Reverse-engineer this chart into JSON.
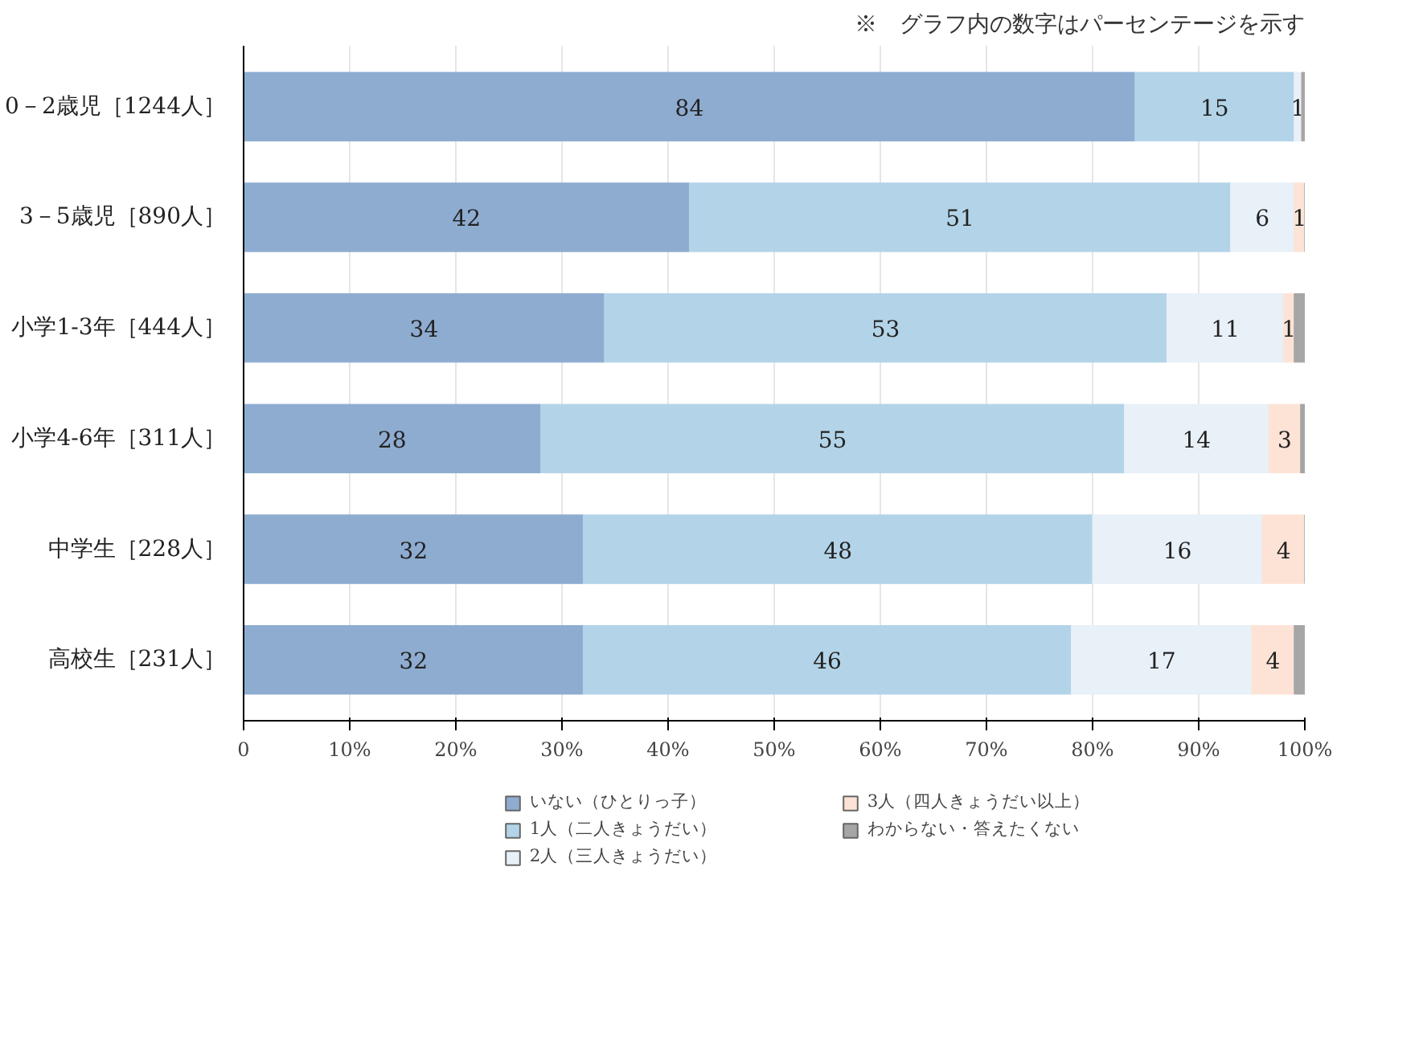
{
  "chart_data": {
    "type": "bar",
    "orientation": "horizontal",
    "stacked": true,
    "categories": [
      "0－2歳児［1244人］",
      "3－5歳児［890人］",
      "小学1-3年［444人］",
      "小学4-6年［311人］",
      "中学生［228人］",
      "高校生［231人］"
    ],
    "series": [
      {
        "name": "いない（ひとりっ子）",
        "color": "#8eacd0",
        "values": [
          84,
          42,
          34,
          28,
          32,
          32
        ],
        "value_labels": [
          "84",
          "42",
          "34",
          "28",
          "32",
          "32"
        ]
      },
      {
        "name": "1人（二人きょうだい）",
        "color": "#b3d4e8",
        "values": [
          15,
          51,
          53,
          55,
          48,
          46
        ],
        "value_labels": [
          "15",
          "51",
          "53",
          "55",
          "48",
          "46"
        ]
      },
      {
        "name": "2人（三人きょうだい）",
        "color": "#e8f0f8",
        "values": [
          0.7,
          6,
          11,
          13.6,
          16,
          17
        ],
        "value_labels": [
          "1",
          "6",
          "11",
          "14",
          "16",
          "17"
        ]
      },
      {
        "name": "3人（四人きょうだい以上）",
        "color": "#fde3d6",
        "values": [
          0,
          1,
          1,
          3,
          4,
          4
        ],
        "value_labels": [
          null,
          "1",
          "1",
          "3",
          "4",
          "4"
        ]
      },
      {
        "name": "わからない・答えたくない",
        "color": "#a6a6a6",
        "values": [
          0.3,
          0,
          1,
          0.4,
          0,
          1
        ],
        "value_labels": [
          null,
          null,
          null,
          null,
          null,
          null
        ]
      }
    ],
    "xlim": [
      0,
      100
    ],
    "xticks": [
      0,
      {
        "value": 10,
        "label": "10%"
      },
      {
        "value": 20,
        "label": "20%"
      },
      {
        "value": 30,
        "label": "30%"
      },
      {
        "value": 40,
        "label": "40%"
      },
      {
        "value": 50,
        "label": "50%"
      },
      {
        "value": 60,
        "label": "60%"
      },
      {
        "value": 70,
        "label": "70%"
      },
      {
        "value": 80,
        "label": "80%"
      },
      {
        "value": 90,
        "label": "90%"
      },
      {
        "value": 100,
        "label": "100%"
      }
    ],
    "grid": "x",
    "legend": "bottom",
    "annotations": [
      "※　グラフ内の数字はパーセンテージを示す"
    ]
  }
}
